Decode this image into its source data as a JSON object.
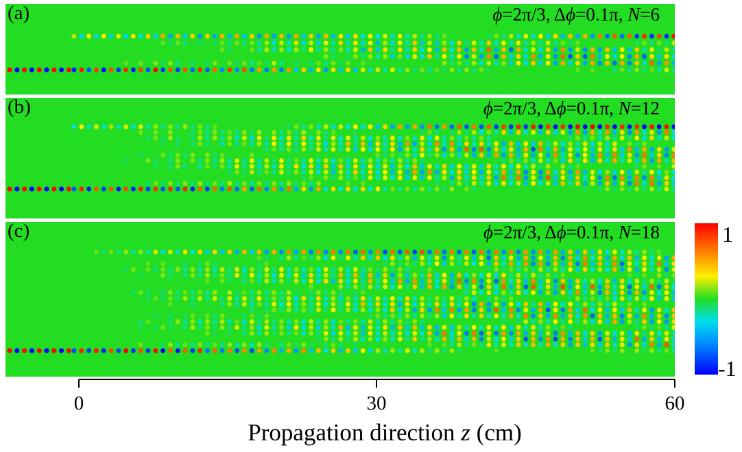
{
  "chart_data": {
    "type": "heatmap",
    "xlabel_prefix": "Propagation direction ",
    "xlabel_var": "z",
    "xlabel_suffix": " (cm)",
    "x_ticks": [
      "0",
      "30",
      "60"
    ],
    "xlim": [
      0,
      60
    ],
    "colorbar": {
      "max_label": "1",
      "min_label": "-1",
      "range": [
        -1,
        1
      ]
    },
    "panels": [
      {
        "label": "(a)",
        "phi": "2π/3",
        "dphi": "0.1π",
        "N_value": "6",
        "N": 6
      },
      {
        "label": "(b)",
        "phi": "2π/3",
        "dphi": "0.1π",
        "N_value": "12",
        "N": 12
      },
      {
        "label": "(c)",
        "phi": "2π/3",
        "dphi": "0.1π",
        "N_value": "18",
        "N": 18
      }
    ]
  }
}
